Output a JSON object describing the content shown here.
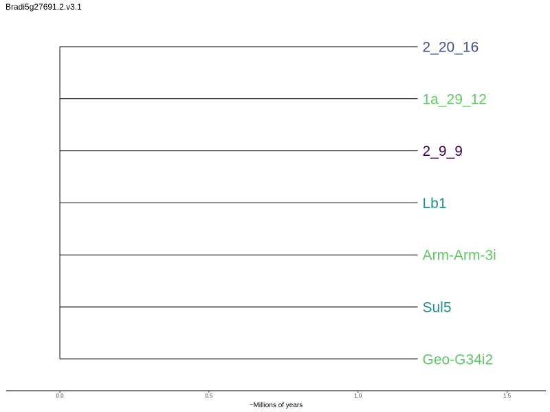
{
  "title": "Bradi5g27691.2.v3.1",
  "chart_data": {
    "type": "tree",
    "title": "Bradi5g27691.2.v3.1",
    "xlabel": "~Millions of years",
    "xlim": [
      -0.18,
      1.63
    ],
    "ticks": [
      {
        "value": 0.0,
        "label": "0.0"
      },
      {
        "value": 0.5,
        "label": "0.5"
      },
      {
        "value": 1.0,
        "label": "1.0"
      },
      {
        "value": 1.5,
        "label": "1.5"
      }
    ],
    "root_x": 0.0,
    "leaves": [
      {
        "name": "2_20_16",
        "x": 1.2,
        "color": "#3b528b"
      },
      {
        "name": "1a_29_12",
        "x": 1.2,
        "color": "#5ec962"
      },
      {
        "name": "2_9_9",
        "x": 1.2,
        "color": "#440154"
      },
      {
        "name": "Lb1",
        "x": 1.2,
        "color": "#21918c"
      },
      {
        "name": "Arm-Arm-3i",
        "x": 1.2,
        "color": "#5ec962"
      },
      {
        "name": "Sul5",
        "x": 1.2,
        "color": "#21918c"
      },
      {
        "name": "Geo-G34i2",
        "x": 1.2,
        "color": "#5ec962"
      }
    ]
  }
}
